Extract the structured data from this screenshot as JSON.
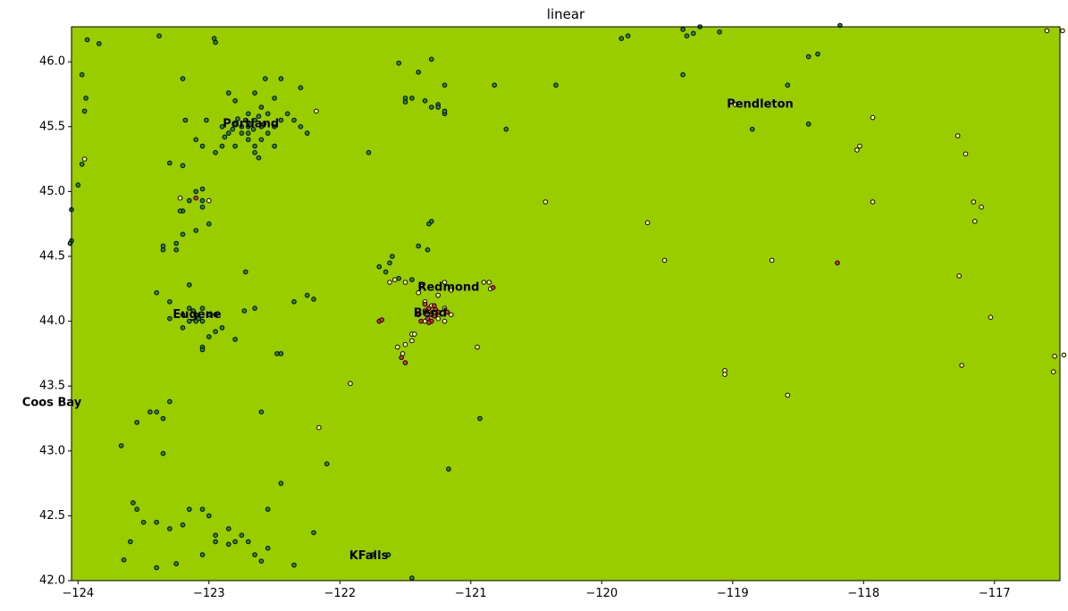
{
  "chart_data": {
    "type": "scatter",
    "title": "linear",
    "xlabel": "",
    "ylabel": "",
    "xlim": [
      -124.05,
      -116.5
    ],
    "ylim": [
      42.0,
      46.27
    ],
    "xticks": [
      -124,
      -123,
      -122,
      -121,
      -120,
      -119,
      -118,
      -117
    ],
    "xtick_labels": [
      "−124",
      "−123",
      "−122",
      "−121",
      "−120",
      "−119",
      "−118",
      "−117"
    ],
    "yticks": [
      42.0,
      42.5,
      43.0,
      43.5,
      44.0,
      44.5,
      45.0,
      45.5,
      46.0
    ],
    "ytick_labels": [
      "42.0",
      "42.5",
      "43.0",
      "43.5",
      "44.0",
      "44.5",
      "45.0",
      "45.5",
      "46.0"
    ],
    "grid": false,
    "colors": {
      "background": "#9acd00",
      "green": "#2e8b2e",
      "yellow": "#ffff80",
      "red": "#e83030",
      "edge": "#000000"
    },
    "cities": [
      {
        "name": "Portland",
        "x": -122.68,
        "y": 45.52
      },
      {
        "name": "Eugene",
        "x": -123.09,
        "y": 44.05
      },
      {
        "name": "Coos Bay",
        "x": -124.2,
        "y": 43.37
      },
      {
        "name": "Redmond",
        "x": -121.17,
        "y": 44.26
      },
      {
        "name": "Bend",
        "x": -121.31,
        "y": 44.06
      },
      {
        "name": "Pendleton",
        "x": -118.79,
        "y": 45.67
      },
      {
        "name": "KFalls",
        "x": -121.78,
        "y": 42.19
      }
    ],
    "series": [
      {
        "color": "green",
        "points": [
          [
            -124.05,
            44.62
          ],
          [
            -124.06,
            44.6
          ],
          [
            -124.05,
            44.86
          ],
          [
            -124.0,
            45.05
          ],
          [
            -123.97,
            45.21
          ],
          [
            -123.95,
            45.62
          ],
          [
            -123.94,
            45.72
          ],
          [
            -123.97,
            45.9
          ],
          [
            -123.93,
            46.17
          ],
          [
            -123.84,
            46.14
          ],
          [
            -123.38,
            46.2
          ],
          [
            -122.96,
            46.18
          ],
          [
            -122.95,
            46.15
          ],
          [
            -123.2,
            45.87
          ],
          [
            -122.85,
            45.76
          ],
          [
            -122.65,
            45.76
          ],
          [
            -122.57,
            45.87
          ],
          [
            -122.45,
            45.87
          ],
          [
            -122.3,
            45.8
          ],
          [
            -122.5,
            45.72
          ],
          [
            -122.8,
            45.7
          ],
          [
            -123.1,
            45.4
          ],
          [
            -123.18,
            45.55
          ],
          [
            -123.02,
            45.55
          ],
          [
            -122.9,
            45.5
          ],
          [
            -122.85,
            45.45
          ],
          [
            -122.8,
            45.52
          ],
          [
            -122.75,
            45.5
          ],
          [
            -122.7,
            45.5
          ],
          [
            -122.65,
            45.55
          ],
          [
            -122.6,
            45.5
          ],
          [
            -122.55,
            45.45
          ],
          [
            -122.5,
            45.5
          ],
          [
            -122.45,
            45.55
          ],
          [
            -122.4,
            45.6
          ],
          [
            -122.35,
            45.55
          ],
          [
            -122.3,
            45.5
          ],
          [
            -122.25,
            45.45
          ],
          [
            -122.75,
            45.45
          ],
          [
            -122.7,
            45.4
          ],
          [
            -122.6,
            45.4
          ],
          [
            -122.5,
            45.35
          ],
          [
            -122.65,
            45.35
          ],
          [
            -122.8,
            45.35
          ],
          [
            -122.9,
            45.35
          ],
          [
            -122.55,
            45.6
          ],
          [
            -122.6,
            45.65
          ],
          [
            -122.7,
            45.6
          ],
          [
            -122.65,
            45.3
          ],
          [
            -122.62,
            45.26
          ],
          [
            -122.7,
            45.45
          ],
          [
            -122.72,
            45.55
          ],
          [
            -122.68,
            45.52
          ],
          [
            -122.66,
            45.48
          ],
          [
            -122.58,
            45.52
          ],
          [
            -122.62,
            45.58
          ],
          [
            -122.78,
            45.56
          ],
          [
            -122.82,
            45.48
          ],
          [
            -122.88,
            45.42
          ],
          [
            -122.95,
            45.3
          ],
          [
            -123.05,
            45.35
          ],
          [
            -123.3,
            45.22
          ],
          [
            -123.2,
            45.2
          ],
          [
            -123.1,
            45.0
          ],
          [
            -123.05,
            45.02
          ],
          [
            -123.15,
            44.93
          ],
          [
            -123.05,
            44.93
          ],
          [
            -123.05,
            44.88
          ],
          [
            -123.2,
            44.85
          ],
          [
            -123.22,
            44.85
          ],
          [
            -123.0,
            44.75
          ],
          [
            -123.1,
            44.7
          ],
          [
            -123.2,
            44.67
          ],
          [
            -123.25,
            44.6
          ],
          [
            -123.35,
            44.58
          ],
          [
            -123.25,
            44.55
          ],
          [
            -123.35,
            44.55
          ],
          [
            -123.15,
            44.28
          ],
          [
            -123.4,
            44.22
          ],
          [
            -123.3,
            44.15
          ],
          [
            -123.15,
            44.1
          ],
          [
            -123.1,
            44.05
          ],
          [
            -123.05,
            44.0
          ],
          [
            -123.0,
            44.05
          ],
          [
            -123.1,
            44.0
          ],
          [
            -123.2,
            44.05
          ],
          [
            -123.15,
            44.0
          ],
          [
            -122.95,
            44.05
          ],
          [
            -123.12,
            44.08
          ],
          [
            -123.08,
            44.02
          ],
          [
            -123.3,
            44.02
          ],
          [
            -123.2,
            43.95
          ],
          [
            -122.95,
            43.92
          ],
          [
            -122.9,
            43.95
          ],
          [
            -123.0,
            43.88
          ],
          [
            -123.05,
            43.8
          ],
          [
            -123.05,
            43.78
          ],
          [
            -122.8,
            43.86
          ],
          [
            -122.73,
            44.08
          ],
          [
            -122.65,
            44.1
          ],
          [
            -122.72,
            44.38
          ],
          [
            -122.35,
            44.15
          ],
          [
            -122.25,
            44.2
          ],
          [
            -122.2,
            44.17
          ],
          [
            -123.05,
            44.1
          ],
          [
            -122.6,
            43.3
          ],
          [
            -122.48,
            43.75
          ],
          [
            -122.45,
            43.75
          ],
          [
            -123.4,
            43.3
          ],
          [
            -123.35,
            43.25
          ],
          [
            -123.45,
            43.3
          ],
          [
            -123.3,
            43.38
          ],
          [
            -123.55,
            43.22
          ],
          [
            -123.35,
            42.98
          ],
          [
            -123.67,
            43.04
          ],
          [
            -123.58,
            42.6
          ],
          [
            -123.55,
            42.55
          ],
          [
            -123.5,
            42.45
          ],
          [
            -123.4,
            42.45
          ],
          [
            -123.3,
            42.4
          ],
          [
            -123.2,
            42.43
          ],
          [
            -123.15,
            42.55
          ],
          [
            -123.0,
            42.5
          ],
          [
            -123.05,
            42.55
          ],
          [
            -122.95,
            42.35
          ],
          [
            -122.85,
            42.4
          ],
          [
            -122.75,
            42.35
          ],
          [
            -122.7,
            42.3
          ],
          [
            -122.8,
            42.3
          ],
          [
            -122.85,
            42.28
          ],
          [
            -122.95,
            42.3
          ],
          [
            -123.05,
            42.2
          ],
          [
            -122.65,
            42.2
          ],
          [
            -122.6,
            42.15
          ],
          [
            -122.55,
            42.25
          ],
          [
            -123.6,
            42.3
          ],
          [
            -123.65,
            42.16
          ],
          [
            -123.25,
            42.13
          ],
          [
            -123.4,
            42.1
          ],
          [
            -122.35,
            42.12
          ],
          [
            -122.2,
            42.37
          ],
          [
            -122.55,
            42.55
          ],
          [
            -122.45,
            42.75
          ],
          [
            -122.1,
            42.9
          ],
          [
            -121.17,
            42.86
          ],
          [
            -121.75,
            42.2
          ],
          [
            -121.63,
            42.2
          ],
          [
            -121.45,
            42.02
          ],
          [
            -121.55,
            45.99
          ],
          [
            -121.3,
            46.02
          ],
          [
            -121.4,
            45.92
          ],
          [
            -121.2,
            45.82
          ],
          [
            -121.5,
            45.72
          ],
          [
            -121.5,
            45.69
          ],
          [
            -121.45,
            45.72
          ],
          [
            -121.35,
            45.7
          ],
          [
            -121.25,
            45.67
          ],
          [
            -121.2,
            45.6
          ],
          [
            -121.25,
            45.65
          ],
          [
            -121.2,
            45.62
          ],
          [
            -121.3,
            45.65
          ],
          [
            -120.82,
            45.82
          ],
          [
            -120.73,
            45.48
          ],
          [
            -120.35,
            45.82
          ],
          [
            -121.78,
            45.3
          ],
          [
            -121.6,
            44.5
          ],
          [
            -121.62,
            44.45
          ],
          [
            -121.7,
            44.42
          ],
          [
            -121.65,
            44.38
          ],
          [
            -121.55,
            44.33
          ],
          [
            -121.45,
            44.32
          ],
          [
            -121.4,
            44.58
          ],
          [
            -121.33,
            44.55
          ],
          [
            -121.3,
            44.77
          ],
          [
            -121.32,
            44.75
          ],
          [
            -120.93,
            43.25
          ],
          [
            -119.85,
            46.18
          ],
          [
            -119.8,
            46.2
          ],
          [
            -119.38,
            46.25
          ],
          [
            -119.35,
            46.2
          ],
          [
            -119.3,
            46.22
          ],
          [
            -119.25,
            46.27
          ],
          [
            -119.1,
            46.23
          ],
          [
            -118.18,
            46.28
          ],
          [
            -119.38,
            45.9
          ],
          [
            -118.42,
            46.04
          ],
          [
            -118.35,
            46.06
          ],
          [
            -118.58,
            45.82
          ],
          [
            -118.85,
            45.48
          ],
          [
            -118.42,
            45.52
          ]
        ]
      },
      {
        "color": "yellow",
        "points": [
          [
            -123.95,
            45.25
          ],
          [
            -122.18,
            45.62
          ],
          [
            -121.92,
            43.52
          ],
          [
            -122.16,
            43.18
          ],
          [
            -121.56,
            43.8
          ],
          [
            -121.5,
            43.82
          ],
          [
            -121.45,
            43.85
          ],
          [
            -121.45,
            43.9
          ],
          [
            -121.52,
            43.75
          ],
          [
            -121.43,
            43.9
          ],
          [
            -121.35,
            44.0
          ],
          [
            -121.25,
            44.02
          ],
          [
            -121.2,
            44.1
          ],
          [
            -121.15,
            44.05
          ],
          [
            -121.3,
            44.12
          ],
          [
            -121.35,
            44.15
          ],
          [
            -121.25,
            44.2
          ],
          [
            -121.4,
            44.22
          ],
          [
            -121.5,
            44.3
          ],
          [
            -121.62,
            44.3
          ],
          [
            -121.58,
            44.32
          ],
          [
            -121.38,
            44.27
          ],
          [
            -121.2,
            44.3
          ],
          [
            -121.15,
            44.24
          ],
          [
            -120.9,
            44.3
          ],
          [
            -120.86,
            44.3
          ],
          [
            -120.85,
            44.25
          ],
          [
            -121.3,
            44.06
          ],
          [
            -121.2,
            44.0
          ],
          [
            -120.95,
            43.8
          ],
          [
            -120.43,
            44.92
          ],
          [
            -119.65,
            44.76
          ],
          [
            -119.52,
            44.47
          ],
          [
            -118.7,
            44.47
          ],
          [
            -118.98,
            45.67
          ],
          [
            -119.06,
            43.62
          ],
          [
            -119.06,
            43.59
          ],
          [
            -118.58,
            43.43
          ],
          [
            -118.05,
            45.32
          ],
          [
            -118.03,
            45.35
          ],
          [
            -117.93,
            45.57
          ],
          [
            -117.93,
            44.92
          ],
          [
            -117.28,
            45.43
          ],
          [
            -117.22,
            45.29
          ],
          [
            -117.16,
            44.92
          ],
          [
            -117.1,
            44.88
          ],
          [
            -117.15,
            44.77
          ],
          [
            -117.27,
            44.35
          ],
          [
            -117.03,
            44.03
          ],
          [
            -117.25,
            43.66
          ],
          [
            -116.6,
            46.24
          ],
          [
            -116.48,
            46.24
          ],
          [
            -116.54,
            43.73
          ],
          [
            -116.47,
            43.74
          ],
          [
            -116.55,
            43.61
          ],
          [
            -123.0,
            44.93
          ],
          [
            -123.22,
            44.95
          ]
        ]
      },
      {
        "color": "red",
        "points": [
          [
            -123.1,
            44.95
          ],
          [
            -121.7,
            44.0
          ],
          [
            -121.68,
            44.01
          ],
          [
            -121.53,
            43.72
          ],
          [
            -121.5,
            43.68
          ],
          [
            -121.35,
            44.08
          ],
          [
            -121.3,
            44.05
          ],
          [
            -121.28,
            44.04
          ],
          [
            -121.33,
            44.02
          ],
          [
            -121.38,
            44.0
          ],
          [
            -121.32,
            44.1
          ],
          [
            -121.28,
            44.12
          ],
          [
            -121.3,
            44.0
          ],
          [
            -121.4,
            44.05
          ],
          [
            -121.25,
            44.07
          ],
          [
            -121.18,
            44.07
          ],
          [
            -121.35,
            44.13
          ],
          [
            -121.32,
            43.99
          ],
          [
            -121.27,
            44.09
          ],
          [
            -118.2,
            44.45
          ],
          [
            -120.83,
            44.26
          ]
        ]
      }
    ]
  }
}
